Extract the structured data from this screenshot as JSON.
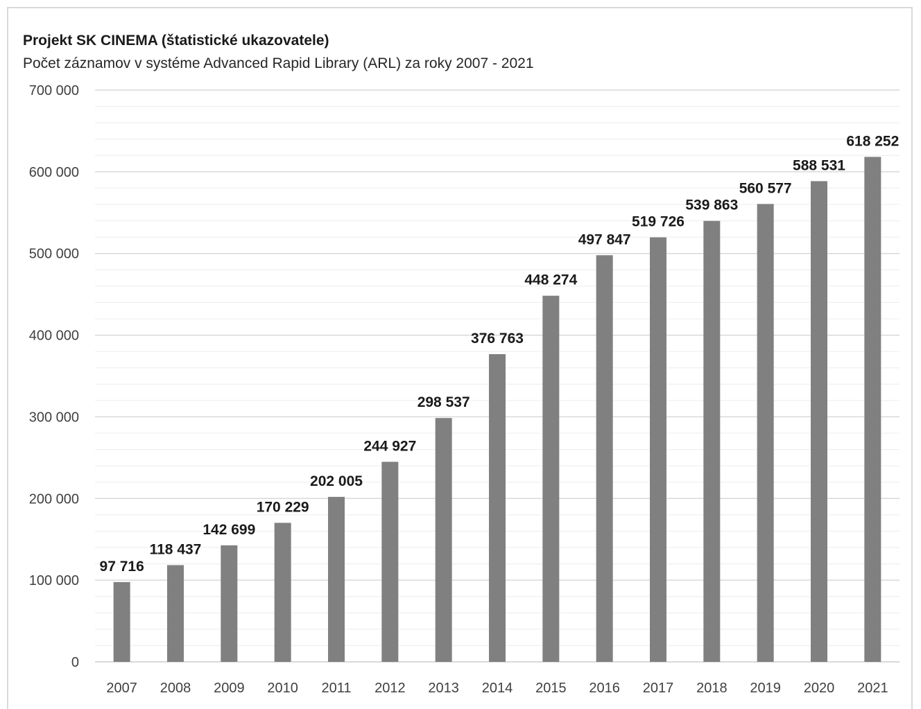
{
  "chart_data": {
    "type": "bar",
    "title": "Projekt SK CINEMA (štatistické ukazovatele)",
    "subtitle": "Počet záznamov v systéme Advanced Rapid Library (ARL) za roky 2007 - 2021",
    "categories": [
      "2007",
      "2008",
      "2009",
      "2010",
      "2011",
      "2012",
      "2013",
      "2014",
      "2015",
      "2016",
      "2017",
      "2018",
      "2019",
      "2020",
      "2021"
    ],
    "values": [
      97716,
      118437,
      142699,
      170229,
      202005,
      244927,
      298537,
      376763,
      448274,
      497847,
      519726,
      539863,
      560577,
      588531,
      618252
    ],
    "data_labels": [
      "97 716",
      "118 437",
      "142 699",
      "170 229",
      "202 005",
      "244 927",
      "298 537",
      "376 763",
      "448 274",
      "497 847",
      "519 726",
      "539 863",
      "560 577",
      "588 531",
      "618 252"
    ],
    "y_ticks": [
      0,
      100000,
      200000,
      300000,
      400000,
      500000,
      600000,
      700000
    ],
    "y_tick_labels": [
      "0",
      "100 000",
      "200 000",
      "300 000",
      "400 000",
      "500 000",
      "600 000",
      "700 000"
    ],
    "ylim": [
      0,
      700000
    ],
    "minor_gridline_step": 20000,
    "grid": true,
    "legend": "none",
    "bar_color": "#808080",
    "major_grid_color": "#d9d9d9",
    "minor_grid_color": "#ececec"
  }
}
